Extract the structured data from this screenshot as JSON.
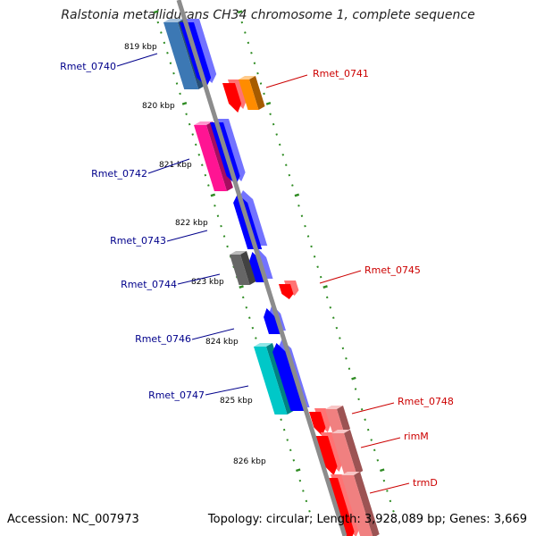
{
  "title": "Ralstonia metallidurans CH34 chromosome 1, complete sequence",
  "footer": {
    "accession": "Accession: NC_007973",
    "info": "Topology: circular; Length: 3,928,089 bp; Genes: 3,669"
  },
  "colors": {
    "backbone": "#8c8c8c",
    "tick": "#2e8b22",
    "forward_label": "#00008b",
    "reverse_label": "#cc0000"
  },
  "kbp_labels": [
    "819 kbp",
    "820 kbp",
    "821 kbp",
    "822 kbp",
    "823 kbp",
    "824 kbp",
    "825 kbp",
    "826 kbp"
  ],
  "genes": [
    {
      "tag": "Rmet_0740",
      "strand": "forward",
      "labeled": true,
      "gene_color": "#3c78b4",
      "cds_color": "#0000ff"
    },
    {
      "tag": "Rmet_0741",
      "strand": "reverse",
      "labeled": true,
      "gene_color": "#ff8c00",
      "cds_color": "#ff0000"
    },
    {
      "tag": "Rmet_0742",
      "strand": "forward",
      "labeled": true,
      "gene_color": "#ff1493",
      "cds_color": "#0000ff"
    },
    {
      "tag": "Rmet_0743",
      "strand": "forward",
      "labeled": true,
      "gene_color": "",
      "cds_color": "#0000ff"
    },
    {
      "tag": "Rmet_0744",
      "strand": "forward",
      "labeled": true,
      "gene_color": "#666666",
      "cds_color": "#0000ff"
    },
    {
      "tag": "Rmet_0745",
      "strand": "reverse",
      "labeled": true,
      "gene_color": "",
      "cds_color": "#ff0000"
    },
    {
      "tag": "Rmet_0746",
      "strand": "forward",
      "labeled": true,
      "gene_color": "",
      "cds_color": "#0000ff"
    },
    {
      "tag": "Rmet_0747",
      "strand": "forward",
      "labeled": true,
      "gene_color": "#00c8c8",
      "cds_color": "#0000ff"
    },
    {
      "tag": "Rmet_0748",
      "strand": "reverse",
      "labeled": true,
      "gene_color": "#f08080",
      "cds_color": "#ff0000"
    },
    {
      "tag": "rimM",
      "strand": "reverse",
      "labeled": true,
      "gene_color": "#f08080",
      "cds_color": "#ff0000"
    },
    {
      "tag": "trmD",
      "strand": "reverse",
      "labeled": true,
      "gene_color": "#f08080",
      "cds_color": "#ff0000"
    }
  ]
}
